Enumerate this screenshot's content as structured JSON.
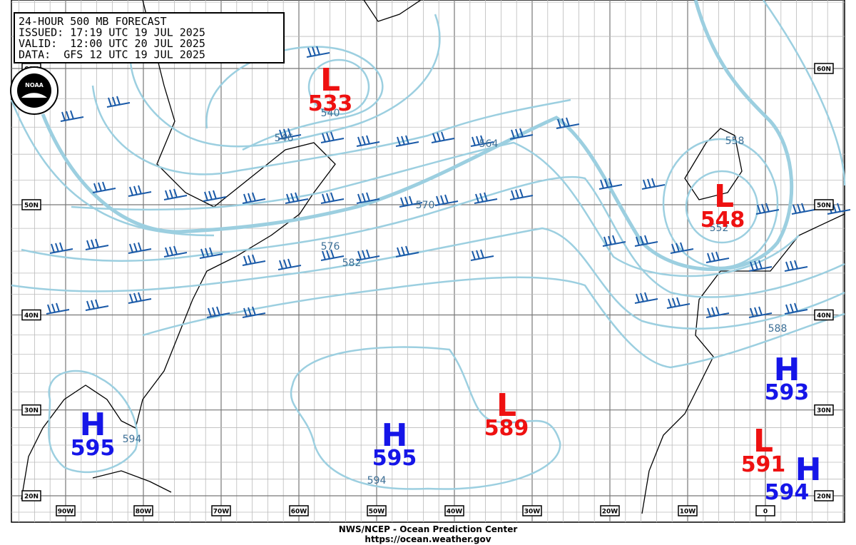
{
  "header": {
    "lines": [
      "24-HOUR 500 MB FORECAST",
      "ISSUED: 17:19 UTC 19 JUL 2025",
      "VALID:  12:00 UTC 20 JUL 2025",
      "DATA:  GFS 12 UTC 19 JUL 2025"
    ]
  },
  "logo": "NOAA",
  "centers": [
    {
      "symbol": "L",
      "value": "533"
    },
    {
      "symbol": "L",
      "value": "548"
    },
    {
      "symbol": "L",
      "value": "589"
    },
    {
      "symbol": "H",
      "value": "595"
    },
    {
      "symbol": "H",
      "value": "595"
    },
    {
      "symbol": "H",
      "value": "593"
    },
    {
      "symbol": "L",
      "value": "591"
    },
    {
      "symbol": "H",
      "value": "594"
    }
  ],
  "contour_labels": [
    "540",
    "546",
    "564",
    "570",
    "576",
    "582",
    "552",
    "558",
    "588",
    "594",
    "594"
  ],
  "lat_labels": [
    "60N",
    "50N",
    "40N",
    "30N",
    "20N"
  ],
  "lon_labels": [
    "90W",
    "80W",
    "70W",
    "60W",
    "50W",
    "40W",
    "30W",
    "20W",
    "10W",
    "0"
  ],
  "footer": {
    "lines": [
      "NWS/NCEP - Ocean Prediction Center",
      "https://ocean.weather.gov"
    ]
  }
}
